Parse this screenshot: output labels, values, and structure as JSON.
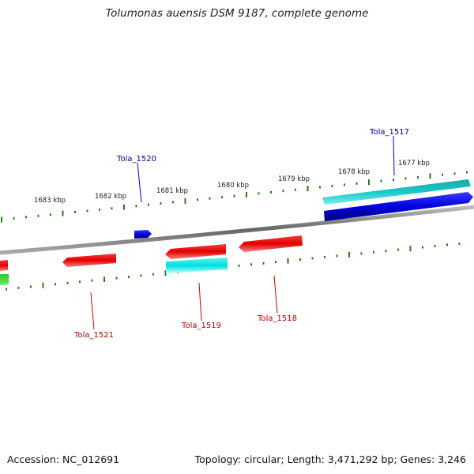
{
  "title": "Tolumonas auensis DSM 9187, complete genome",
  "footer": {
    "accession": "Accession: NC_012691",
    "summary": "Topology: circular; Length: 3,471,292 bp; Genes: 3,246"
  },
  "ticks": [
    {
      "label": "1683 kbp"
    },
    {
      "label": "1682 kbp"
    },
    {
      "label": "1681 kbp"
    },
    {
      "label": "1680 kbp"
    },
    {
      "label": "1679 kbp"
    },
    {
      "label": "1678 kbp"
    },
    {
      "label": "1677 kbp"
    }
  ],
  "genes": [
    {
      "name": "Tola_1517",
      "strand": "top",
      "color": "#0000cc"
    },
    {
      "name": "Tola_1520",
      "strand": "top",
      "color": "#0000cc"
    },
    {
      "name": "Tola_1518",
      "strand": "bottom",
      "color": "#cc0000"
    },
    {
      "name": "Tola_1519",
      "strand": "bottom",
      "color": "#cc0000"
    },
    {
      "name": "Tola_1521",
      "strand": "bottom",
      "color": "#cc0000"
    }
  ],
  "colors": {
    "forward_cds": "#0000dd",
    "reverse_cds": "#ee0000",
    "trna": "#00cccc",
    "rrna": "#00aa00",
    "ruler": "#2a7a1a",
    "backbone": "#777777",
    "label_top": "#000099",
    "label_bottom": "#aa0000"
  }
}
